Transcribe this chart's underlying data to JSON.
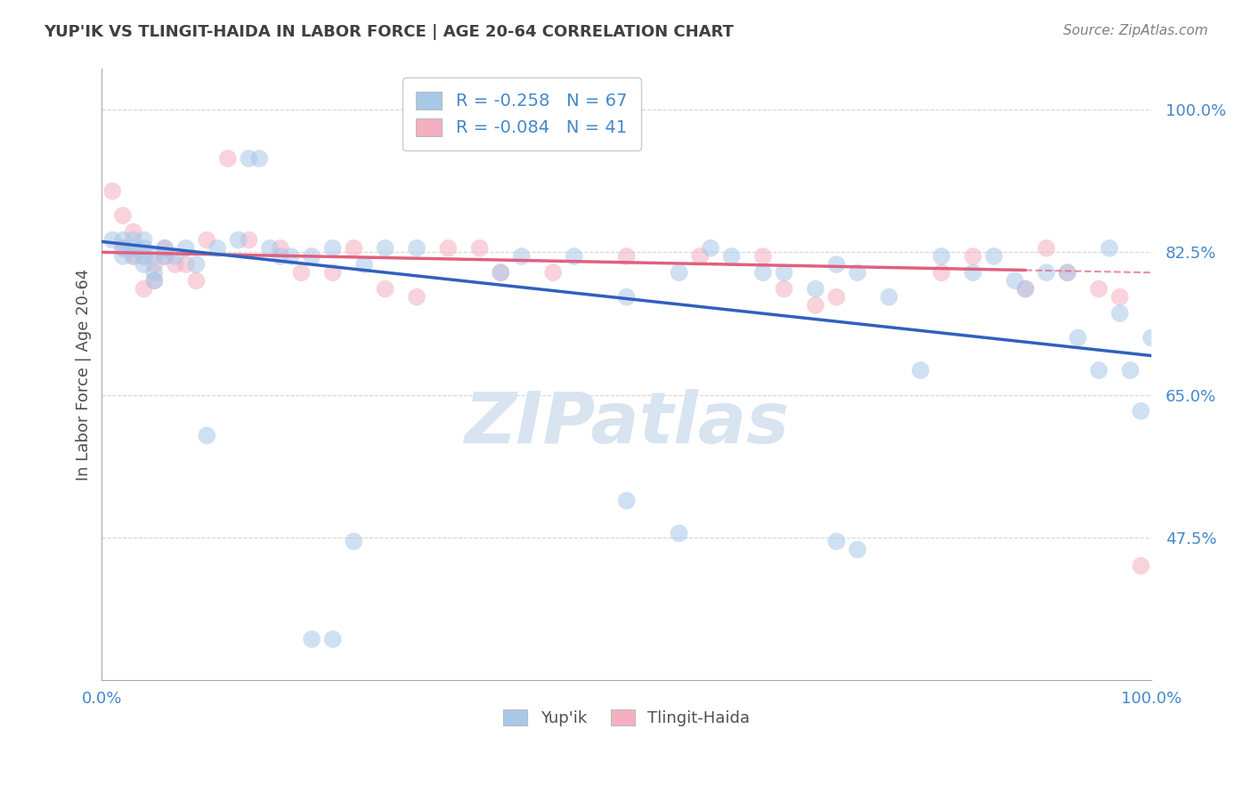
{
  "title": "YUP'IK VS TLINGIT-HAIDA IN LABOR FORCE | AGE 20-64 CORRELATION CHART",
  "source_text": "Source: ZipAtlas.com",
  "ylabel": "In Labor Force | Age 20-64",
  "xlim": [
    0.0,
    1.0
  ],
  "ylim": [
    0.3,
    1.05
  ],
  "yticks": [
    0.475,
    0.65,
    0.825,
    1.0
  ],
  "ytick_labels": [
    "47.5%",
    "65.0%",
    "82.5%",
    "100.0%"
  ],
  "xticks": [
    0.0,
    1.0
  ],
  "xtick_labels": [
    "0.0%",
    "100.0%"
  ],
  "blue_color": "#a8c8e8",
  "pink_color": "#f4b0c0",
  "blue_line_color": "#3060c0",
  "pink_line_color": "#e06080",
  "background_color": "#ffffff",
  "grid_color": "#cccccc",
  "title_color": "#404040",
  "axis_label_color": "#505050",
  "tick_label_color": "#4488cc",
  "watermark_color": "#d8e4f0",
  "blue_x": [
    0.01,
    0.02,
    0.02,
    0.02,
    0.03,
    0.03,
    0.03,
    0.04,
    0.04,
    0.04,
    0.04,
    0.05,
    0.05,
    0.05,
    0.06,
    0.06,
    0.07,
    0.08,
    0.09,
    0.1,
    0.11,
    0.13,
    0.14,
    0.15,
    0.16,
    0.17,
    0.18,
    0.2,
    0.22,
    0.25,
    0.27,
    0.3,
    0.38,
    0.4,
    0.45,
    0.5,
    0.55,
    0.58,
    0.6,
    0.63,
    0.65,
    0.68,
    0.7,
    0.72,
    0.75,
    0.78,
    0.8,
    0.83,
    0.85,
    0.87,
    0.88,
    0.9,
    0.92,
    0.93,
    0.95,
    0.96,
    0.97,
    0.98,
    0.99,
    1.0,
    0.2,
    0.22,
    0.24,
    0.5,
    0.55,
    0.7,
    0.72
  ],
  "blue_y": [
    0.84,
    0.84,
    0.83,
    0.82,
    0.84,
    0.83,
    0.82,
    0.82,
    0.83,
    0.81,
    0.84,
    0.82,
    0.8,
    0.79,
    0.82,
    0.83,
    0.82,
    0.83,
    0.81,
    0.6,
    0.83,
    0.84,
    0.94,
    0.94,
    0.83,
    0.82,
    0.82,
    0.82,
    0.83,
    0.81,
    0.83,
    0.83,
    0.8,
    0.82,
    0.82,
    0.77,
    0.8,
    0.83,
    0.82,
    0.8,
    0.8,
    0.78,
    0.81,
    0.8,
    0.77,
    0.68,
    0.82,
    0.8,
    0.82,
    0.79,
    0.78,
    0.8,
    0.8,
    0.72,
    0.68,
    0.83,
    0.75,
    0.68,
    0.63,
    0.72,
    0.35,
    0.35,
    0.47,
    0.52,
    0.48,
    0.47,
    0.46
  ],
  "pink_x": [
    0.01,
    0.02,
    0.02,
    0.03,
    0.03,
    0.04,
    0.04,
    0.05,
    0.05,
    0.06,
    0.06,
    0.07,
    0.08,
    0.09,
    0.1,
    0.12,
    0.14,
    0.17,
    0.19,
    0.22,
    0.24,
    0.27,
    0.3,
    0.33,
    0.36,
    0.38,
    0.43,
    0.5,
    0.57,
    0.63,
    0.65,
    0.68,
    0.7,
    0.8,
    0.83,
    0.88,
    0.9,
    0.92,
    0.95,
    0.97,
    0.99
  ],
  "pink_y": [
    0.9,
    0.87,
    0.83,
    0.85,
    0.82,
    0.82,
    0.78,
    0.81,
    0.79,
    0.83,
    0.82,
    0.81,
    0.81,
    0.79,
    0.84,
    0.94,
    0.84,
    0.83,
    0.8,
    0.8,
    0.83,
    0.78,
    0.77,
    0.83,
    0.83,
    0.8,
    0.8,
    0.82,
    0.82,
    0.82,
    0.78,
    0.76,
    0.77,
    0.8,
    0.82,
    0.78,
    0.83,
    0.8,
    0.78,
    0.77,
    0.44
  ],
  "blue_line_x0": 0.0,
  "blue_line_y0": 0.838,
  "blue_line_x1": 1.0,
  "blue_line_y1": 0.698,
  "pink_line_x0": 0.0,
  "pink_line_y0": 0.825,
  "pink_line_x1": 1.0,
  "pink_line_y1": 0.8
}
